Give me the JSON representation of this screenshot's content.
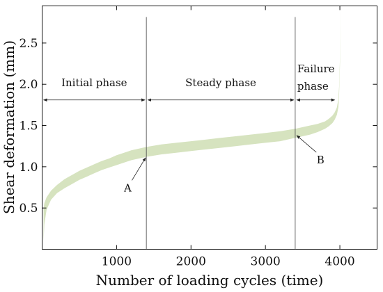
{
  "chart_data": {
    "type": "area",
    "title": "",
    "xlabel": "Number of loading cycles (time)",
    "ylabel": "Shear deformation (mm)",
    "xlim": [
      0,
      4500
    ],
    "ylim": [
      0,
      2.95
    ],
    "xticks": [
      1000,
      2000,
      3000,
      4000
    ],
    "yticks": [
      0.5,
      1.0,
      1.5,
      2.0,
      2.5
    ],
    "xtick_labels": [
      "1000",
      "2000",
      "3000",
      "4000"
    ],
    "ytick_labels": [
      "0.5",
      "1.0",
      "1.5",
      "2.0",
      "2.5"
    ],
    "grid": false,
    "band_color": "#d6e3bf",
    "series": [
      {
        "x": [
          20,
          30,
          60,
          120,
          200,
          300,
          400,
          500,
          600,
          700,
          800,
          900,
          1000,
          1100,
          1200,
          1300,
          1400,
          1600,
          1800,
          2000,
          2200,
          2400,
          2600,
          2800,
          3000,
          3200,
          3400,
          3500,
          3600,
          3700,
          3800,
          3850,
          3900,
          3930,
          3960,
          3980,
          3990,
          4000,
          4010,
          4020
        ],
        "upper": [
          0.5,
          0.56,
          0.63,
          0.71,
          0.78,
          0.85,
          0.9,
          0.95,
          0.99,
          1.03,
          1.07,
          1.1,
          1.14,
          1.17,
          1.2,
          1.22,
          1.24,
          1.27,
          1.29,
          1.31,
          1.33,
          1.35,
          1.37,
          1.39,
          1.41,
          1.43,
          1.46,
          1.48,
          1.5,
          1.52,
          1.55,
          1.58,
          1.62,
          1.66,
          1.72,
          1.82,
          1.98,
          2.3,
          2.6,
          2.95
        ],
        "lower": [
          0.1,
          0.3,
          0.48,
          0.6,
          0.68,
          0.74,
          0.79,
          0.84,
          0.88,
          0.92,
          0.96,
          0.99,
          1.02,
          1.05,
          1.08,
          1.1,
          1.12,
          1.15,
          1.17,
          1.19,
          1.21,
          1.23,
          1.25,
          1.27,
          1.29,
          1.31,
          1.35,
          1.37,
          1.39,
          1.42,
          1.46,
          1.49,
          1.53,
          1.57,
          1.63,
          1.72,
          1.88,
          2.2,
          2.55,
          2.95
        ]
      }
    ],
    "phase_boundaries": [
      1400,
      3400
    ],
    "phases": [
      {
        "label": "Initial phase",
        "x_start": 0,
        "x_end": 1400
      },
      {
        "label": "Steady phase",
        "x_start": 1400,
        "x_end": 3400
      },
      {
        "label_line1": "Failure",
        "label_line2": "phase",
        "x_start": 3400,
        "x_end": 3950
      }
    ],
    "arrow_y": 1.81,
    "annotations": [
      {
        "label": "A",
        "point_x": 1390,
        "point_y": 1.11,
        "text_x": 1150,
        "text_y": 0.7
      },
      {
        "label": "B",
        "point_x": 3420,
        "point_y": 1.38,
        "text_x": 3740,
        "text_y": 1.04
      }
    ]
  }
}
